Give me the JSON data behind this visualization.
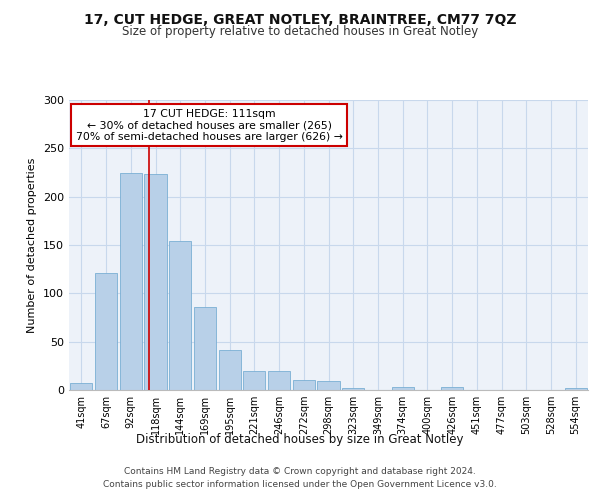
{
  "title": "17, CUT HEDGE, GREAT NOTLEY, BRAINTREE, CM77 7QZ",
  "subtitle": "Size of property relative to detached houses in Great Notley",
  "xlabel": "Distribution of detached houses by size in Great Notley",
  "ylabel": "Number of detached properties",
  "categories": [
    "41sqm",
    "67sqm",
    "92sqm",
    "118sqm",
    "144sqm",
    "169sqm",
    "195sqm",
    "221sqm",
    "246sqm",
    "272sqm",
    "298sqm",
    "323sqm",
    "349sqm",
    "374sqm",
    "400sqm",
    "426sqm",
    "451sqm",
    "477sqm",
    "503sqm",
    "528sqm",
    "554sqm"
  ],
  "values": [
    7,
    121,
    224,
    223,
    154,
    86,
    41,
    20,
    20,
    10,
    9,
    2,
    0,
    3,
    0,
    3,
    0,
    0,
    0,
    0,
    2
  ],
  "bar_color": "#b8d0e8",
  "bar_edge_color": "#7aafd4",
  "vline_color": "#cc0000",
  "annotation_box_color": "#cc0000",
  "ylim": [
    0,
    300
  ],
  "yticks": [
    0,
    50,
    100,
    150,
    200,
    250,
    300
  ],
  "grid_color": "#c8d8ec",
  "background_color": "#edf2f9",
  "property_label": "17 CUT HEDGE: 111sqm",
  "pct_smaller": 30,
  "n_smaller": 265,
  "pct_larger_semi": 70,
  "n_larger_semi": 626,
  "vline_index": 2.73,
  "footer_line1": "Contains HM Land Registry data © Crown copyright and database right 2024.",
  "footer_line2": "Contains public sector information licensed under the Open Government Licence v3.0."
}
